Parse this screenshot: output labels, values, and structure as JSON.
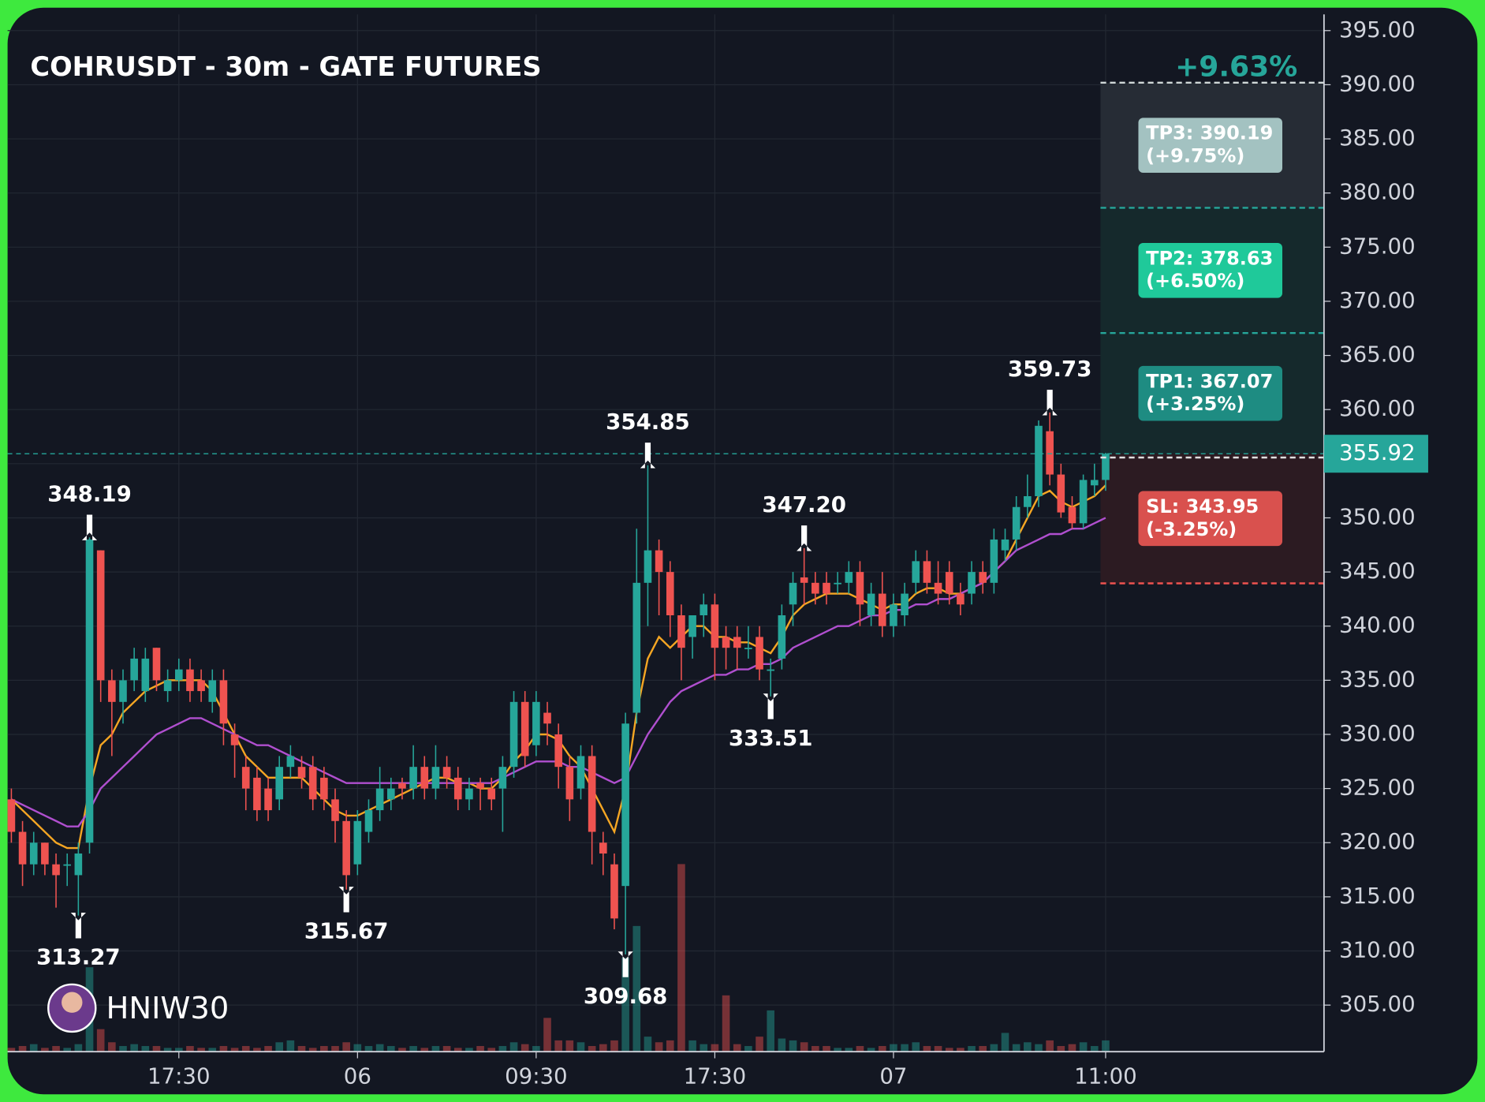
{
  "chart_data": {
    "type": "candlestick",
    "title": "COHRUSDT - 30m - GATE FUTURES",
    "change_label": "+9.63%",
    "watermark": "HNIW30",
    "up_color": "#26a69a",
    "down_color": "#ef5350",
    "grid": true,
    "ylim": [
      300.7,
      396.5
    ],
    "yticks": [
      {
        "value": 305,
        "label": "305.00"
      },
      {
        "value": 310,
        "label": "310.00"
      },
      {
        "value": 315,
        "label": "315.00"
      },
      {
        "value": 320,
        "label": "320.00"
      },
      {
        "value": 325,
        "label": "325.00"
      },
      {
        "value": 330,
        "label": "330.00"
      },
      {
        "value": 335,
        "label": "335.00"
      },
      {
        "value": 340,
        "label": "340.00"
      },
      {
        "value": 345,
        "label": "345.00"
      },
      {
        "value": 350,
        "label": "350.00"
      },
      {
        "value": 355,
        "label": "355.00"
      },
      {
        "value": 360,
        "label": "360.00"
      },
      {
        "value": 365,
        "label": "365.00"
      },
      {
        "value": 370,
        "label": "370.00"
      },
      {
        "value": 375,
        "label": "375.00"
      },
      {
        "value": 380,
        "label": "380.00"
      },
      {
        "value": 385,
        "label": "385.00"
      },
      {
        "value": 390,
        "label": "390.00"
      },
      {
        "value": 395,
        "label": "395.00"
      }
    ],
    "categories": [
      null,
      null,
      null,
      null,
      null,
      null,
      null,
      null,
      null,
      null,
      null,
      null,
      null,
      null,
      null,
      "17:30",
      null,
      null,
      null,
      null,
      null,
      null,
      null,
      null,
      null,
      null,
      null,
      null,
      null,
      null,
      null,
      "06",
      null,
      null,
      null,
      null,
      null,
      null,
      null,
      null,
      null,
      null,
      null,
      null,
      null,
      null,
      null,
      "09:30",
      null,
      null,
      null,
      null,
      null,
      null,
      null,
      null,
      null,
      null,
      null,
      null,
      null,
      null,
      null,
      "17:30",
      null,
      null,
      null,
      null,
      null,
      null,
      null,
      null,
      null,
      null,
      null,
      null,
      null,
      null,
      null,
      "07",
      null,
      null,
      null,
      null,
      null,
      null,
      null,
      null,
      null,
      null,
      null,
      null,
      null,
      null,
      null,
      null,
      null,
      null,
      "11:00"
    ],
    "open": [
      324,
      321,
      318,
      320,
      318,
      318,
      317,
      320,
      347,
      335,
      333,
      335,
      334,
      338,
      334,
      335,
      336,
      335,
      333,
      335,
      330,
      327,
      326,
      325,
      324,
      327,
      327,
      327,
      326,
      324,
      322,
      318,
      321,
      323,
      324,
      325.5,
      325,
      327,
      325,
      327,
      326,
      324,
      325.5,
      325,
      325,
      327,
      333,
      329,
      332,
      330,
      327,
      325,
      328,
      320,
      318,
      316,
      332,
      344,
      347,
      345,
      341,
      339,
      341,
      342,
      339,
      339,
      338,
      339,
      336,
      337,
      342,
      344.5,
      344,
      344,
      344,
      344,
      345,
      341,
      343,
      340,
      341,
      344,
      346,
      344,
      345,
      343,
      343,
      345,
      344,
      347,
      348,
      351,
      352,
      358,
      354,
      351,
      349.5,
      353,
      353.5
    ],
    "high": [
      325,
      322,
      321,
      320,
      319,
      319,
      320,
      348.19,
      347,
      336,
      336,
      338,
      338,
      338,
      336,
      337,
      337,
      336,
      336,
      336,
      331,
      328,
      327,
      326,
      328,
      329,
      328,
      328,
      327,
      325,
      323,
      323,
      324,
      327,
      326,
      326,
      329,
      328,
      329,
      328,
      327,
      326,
      326,
      326,
      328,
      334,
      334,
      334,
      333,
      331,
      328,
      329,
      329,
      321,
      319,
      332,
      349,
      354.85,
      348,
      346,
      342,
      341,
      343,
      343,
      340,
      340,
      340,
      340,
      337,
      342,
      345,
      347.2,
      345,
      345,
      345,
      346,
      346,
      344,
      345,
      343,
      344,
      347,
      347,
      346,
      346,
      344,
      346,
      346,
      349,
      349,
      352,
      354,
      359,
      359.73,
      355,
      352,
      354,
      355,
      356
    ],
    "low": [
      320,
      316,
      317,
      317,
      314,
      316,
      313.27,
      319,
      333,
      328,
      331,
      334,
      333,
      334,
      333,
      334,
      333,
      333,
      332,
      329,
      326,
      323,
      322,
      322,
      323,
      326,
      325,
      323,
      323,
      320,
      315.67,
      317,
      320,
      322,
      323,
      324,
      324,
      324,
      324,
      325,
      323,
      323,
      323,
      323,
      321,
      326,
      327,
      328,
      329,
      325,
      322,
      324,
      318,
      317,
      312,
      309.68,
      331,
      340,
      341,
      339,
      335,
      337,
      339,
      335,
      336,
      336,
      337,
      335,
      333.51,
      336,
      340,
      342,
      342,
      342,
      343,
      343,
      340,
      340,
      339,
      339,
      340,
      343,
      343,
      342,
      342,
      341,
      342,
      343,
      343,
      346,
      347,
      350,
      351,
      353,
      350,
      349,
      349,
      352,
      352.5
    ],
    "close": [
      321,
      318,
      320,
      318,
      317,
      318,
      319,
      348,
      335,
      333,
      335,
      337,
      337,
      335,
      335,
      336,
      334,
      334,
      335,
      331,
      329,
      325,
      323,
      323,
      327,
      328,
      326,
      324,
      324,
      322,
      317,
      322,
      323,
      325,
      325,
      325,
      327,
      325,
      327,
      326,
      324,
      325,
      325,
      324,
      327,
      333,
      328,
      333,
      331,
      327,
      324,
      328,
      321,
      319,
      313,
      331,
      344,
      347,
      345,
      341,
      338,
      341,
      342,
      338,
      338,
      338,
      338,
      336,
      336,
      341,
      344,
      344,
      343,
      343,
      344,
      345,
      342,
      343,
      340,
      342,
      343,
      346,
      344,
      343,
      343,
      342,
      345,
      344,
      348,
      348,
      351,
      352,
      358.5,
      354,
      350.5,
      349.5,
      353.5,
      353.5,
      355.92
    ],
    "volume": [
      2,
      3,
      4,
      2,
      3,
      2,
      4,
      45,
      12,
      5,
      3,
      4,
      3,
      3,
      2,
      2,
      3,
      2,
      2,
      3,
      2,
      3,
      2,
      3,
      5,
      6,
      3,
      2,
      3,
      3,
      5,
      4,
      3,
      4,
      3,
      2,
      3,
      2,
      3,
      3,
      2,
      2,
      3,
      2,
      3,
      5,
      4,
      3,
      18,
      6,
      6,
      5,
      3,
      4,
      6,
      50,
      67,
      8,
      5,
      6,
      100,
      6,
      4,
      4,
      30,
      4,
      3,
      8,
      22,
      7,
      6,
      5,
      3,
      3,
      2,
      2,
      3,
      2,
      3,
      4,
      4,
      5,
      3,
      3,
      2,
      2,
      3,
      3,
      4,
      10,
      4,
      5,
      4,
      6,
      3,
      4,
      5,
      3,
      6
    ],
    "series": [
      {
        "color": "#f5a623",
        "values": [
          324,
          323,
          322,
          321,
          320,
          319.5,
          319.5,
          325,
          329,
          330,
          332,
          333,
          334,
          334.5,
          335,
          335,
          335,
          335,
          334,
          332,
          330,
          328,
          327,
          326,
          326,
          326,
          326,
          325,
          324,
          323,
          322.5,
          322.5,
          323,
          323.5,
          324,
          324.5,
          325,
          325.5,
          326,
          326,
          325.5,
          325.5,
          325,
          325,
          326,
          327.5,
          328.5,
          330,
          330,
          329.5,
          328,
          327,
          325,
          323,
          321,
          325,
          332,
          337,
          339,
          338,
          339,
          340,
          340,
          339,
          339,
          338.5,
          338.5,
          338,
          337.5,
          339,
          341,
          342,
          342.5,
          343,
          343,
          343,
          342.5,
          342,
          341.5,
          342,
          342,
          343,
          343.5,
          343.5,
          343,
          343,
          343.5,
          344,
          345,
          346,
          348,
          350,
          352,
          352.5,
          351.5,
          351,
          351.5,
          352,
          353
        ]
      },
      {
        "color": "#b04fcf",
        "values": [
          324,
          323.5,
          323,
          322.5,
          322,
          321.5,
          321.5,
          323,
          325,
          326,
          327,
          328,
          329,
          330,
          330.5,
          331,
          331.5,
          331.5,
          331,
          330.5,
          330,
          329.5,
          329,
          329,
          328.5,
          328,
          327.5,
          327,
          326.5,
          326,
          325.5,
          325.5,
          325.5,
          325.5,
          325.5,
          325.5,
          325.5,
          325.5,
          325.5,
          325.5,
          325.5,
          325.5,
          325.5,
          325.5,
          326,
          326.5,
          327,
          327.5,
          327.5,
          327.5,
          327,
          327,
          326.5,
          326,
          325.5,
          326,
          328,
          330,
          331.5,
          333,
          334,
          334.5,
          335,
          335.5,
          335.5,
          336,
          336,
          336.5,
          336.5,
          337,
          338,
          338.5,
          339,
          339.5,
          340,
          340,
          340.5,
          341,
          341,
          341.5,
          341.5,
          342,
          342,
          342.5,
          342.5,
          343,
          343.5,
          344,
          345,
          346,
          347,
          347.5,
          348,
          348.5,
          348.5,
          349,
          349,
          349.5,
          350
        ]
      }
    ],
    "annotations": [
      {
        "label": "348.19",
        "value": 348.19,
        "index": 7,
        "side": "high"
      },
      {
        "label": "313.27",
        "value": 313.27,
        "index": 6,
        "side": "low"
      },
      {
        "label": "315.67",
        "value": 315.67,
        "index": 30,
        "side": "low"
      },
      {
        "label": "309.68",
        "value": 309.68,
        "index": 55,
        "side": "low"
      },
      {
        "label": "354.85",
        "value": 354.85,
        "index": 57,
        "side": "high"
      },
      {
        "label": "333.51",
        "value": 333.51,
        "index": 68,
        "side": "low"
      },
      {
        "label": "347.20",
        "value": 347.2,
        "index": 71,
        "side": "high"
      },
      {
        "label": "359.73",
        "value": 359.73,
        "index": 93,
        "side": "high"
      }
    ],
    "last_price": {
      "value": 355.92,
      "label": "355.92"
    },
    "levels": [
      {
        "label": "TP3: 390.19",
        "pct": "(+9.75%)",
        "value": 390.19,
        "line": "#d0d8d8",
        "zone": "#262c35",
        "box": "#a3c2c1"
      },
      {
        "label": "TP2: 378.63",
        "pct": "(+6.50%)",
        "value": 378.63,
        "line": "#26a69a",
        "zone": "#15292c",
        "box": "#1fc99a"
      },
      {
        "label": "TP1: 367.07",
        "pct": "(+3.25%)",
        "value": 367.07,
        "line": "#26a69a",
        "zone": "#15292c",
        "box": "#1e8c82"
      },
      {
        "label": "SL: 343.95",
        "pct": "(-3.25%)",
        "value": 343.95,
        "line": "#ef5350",
        "zone": "#2c1b22",
        "box": "#d9514e"
      }
    ]
  }
}
